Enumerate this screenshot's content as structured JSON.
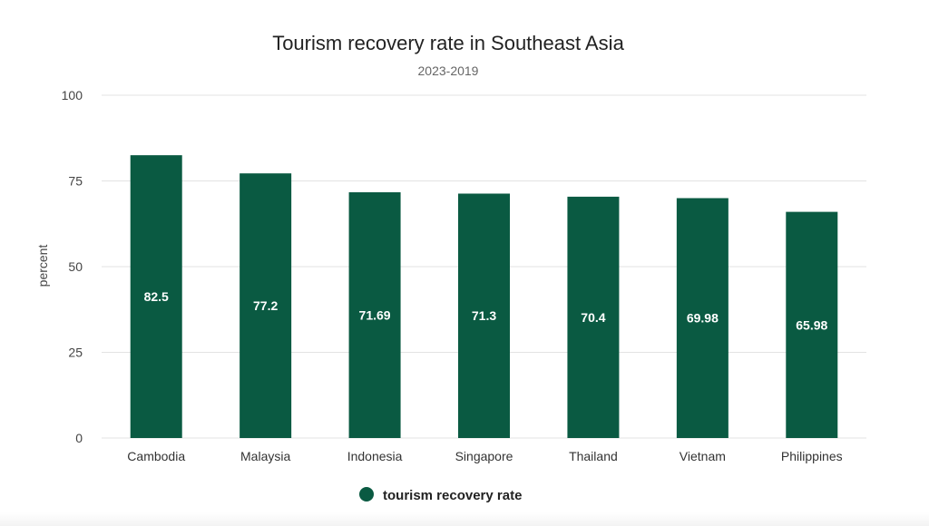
{
  "chart_data": {
    "type": "bar",
    "title": "Tourism recovery rate in Southeast Asia",
    "subtitle": "2023-2019",
    "xlabel": "",
    "ylabel": "percent",
    "ylim": [
      0,
      100
    ],
    "yticks": [
      0,
      25,
      50,
      75,
      100
    ],
    "grid": true,
    "legend_position": "bottom",
    "categories": [
      "Cambodia",
      "Malaysia",
      "Indonesia",
      "Singapore",
      "Thailand",
      "Vietnam",
      "Philippines"
    ],
    "series": [
      {
        "name": "tourism recovery rate",
        "color": "#0a5a42",
        "values": [
          82.5,
          77.2,
          71.69,
          71.3,
          70.4,
          69.98,
          65.98
        ]
      }
    ]
  }
}
